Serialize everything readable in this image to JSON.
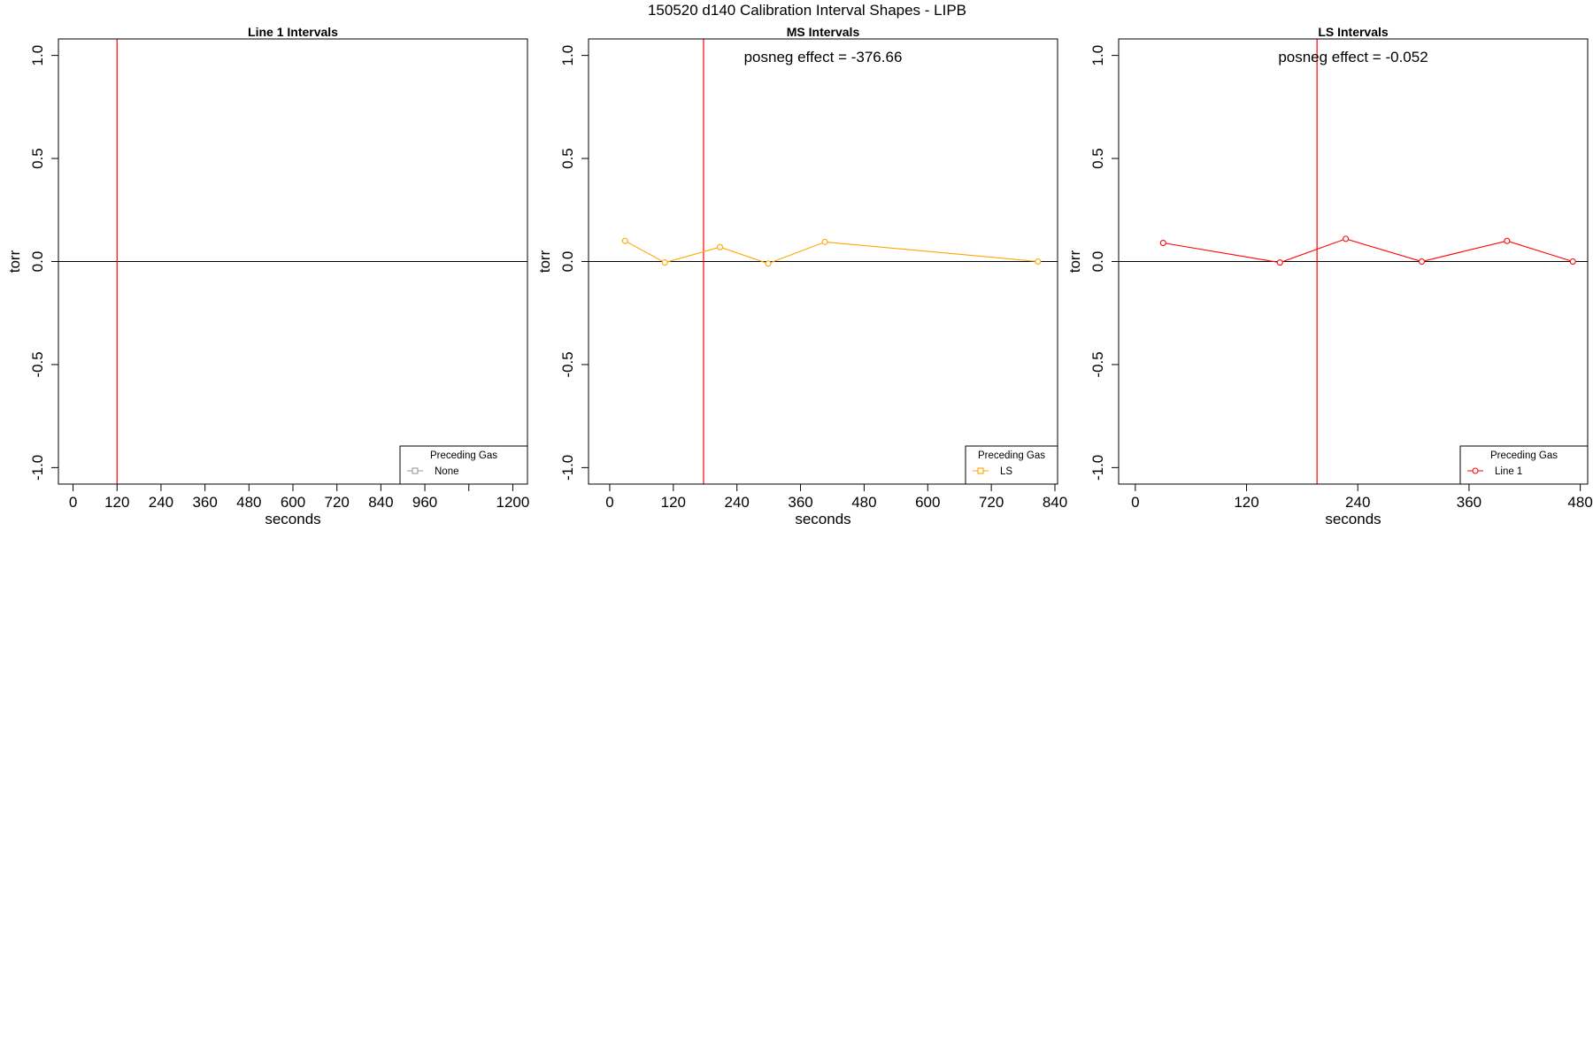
{
  "figure_title": "150520   d140   Calibration Interval Shapes - LIPB",
  "colors": {
    "red": "#ff0000",
    "orange": "#ffa500",
    "gray": "#999999",
    "axis": "#000000"
  },
  "chart_data": [
    {
      "type": "line",
      "title": "Line 1 Intervals",
      "xlabel": "seconds",
      "ylabel": "torr",
      "xlim": [
        -40,
        1240
      ],
      "ylim": [
        -1.08,
        1.08
      ],
      "xticks": [
        0,
        120,
        240,
        360,
        480,
        600,
        720,
        840,
        960,
        1080,
        1200
      ],
      "xtick_labels": [
        "0",
        "120",
        "240",
        "360",
        "480",
        "600",
        "720",
        "840",
        "960",
        "",
        "1200"
      ],
      "yticks": [
        -1.0,
        -0.5,
        0.0,
        0.5,
        1.0
      ],
      "ytick_labels": [
        "-1.0",
        "-0.5",
        "0.0",
        "0.5",
        "1.0"
      ],
      "hline": 0,
      "vline": 120,
      "annotation": "",
      "legend": {
        "title": "Preceding Gas",
        "label": "None",
        "color": "#999999",
        "position": "bottom-right",
        "marker": "square"
      },
      "series": [
        {
          "color": "#999999",
          "x": [],
          "y": []
        }
      ]
    },
    {
      "type": "line",
      "title": "MS Intervals",
      "xlabel": "seconds",
      "ylabel": "torr",
      "xlim": [
        -40,
        845
      ],
      "ylim": [
        -1.08,
        1.08
      ],
      "xticks": [
        0,
        120,
        240,
        360,
        480,
        600,
        720,
        840
      ],
      "xtick_labels": [
        "0",
        "120",
        "240",
        "360",
        "480",
        "600",
        "720",
        "840"
      ],
      "yticks": [
        -1.0,
        -0.5,
        0.0,
        0.5,
        1.0
      ],
      "ytick_labels": [
        "-1.0",
        "-0.5",
        "0.0",
        "0.5",
        "1.0"
      ],
      "hline": 0,
      "vline": 177,
      "annotation": "posneg effect = -376.66",
      "legend": {
        "title": "Preceding Gas",
        "label": "LS",
        "color": "#ffa500",
        "position": "bottom-right",
        "marker": "square"
      },
      "series": [
        {
          "color": "#ffa500",
          "x": [
            29,
            104,
            208,
            299,
            406,
            808
          ],
          "y": [
            0.1,
            -0.005,
            0.07,
            -0.01,
            0.095,
            0.0
          ]
        }
      ]
    },
    {
      "type": "line",
      "title": "LS Intervals",
      "xlabel": "seconds",
      "ylabel": "torr",
      "xlim": [
        -18,
        488
      ],
      "ylim": [
        -1.08,
        1.08
      ],
      "xticks": [
        0,
        120,
        240,
        360,
        480
      ],
      "xtick_labels": [
        "0",
        "120",
        "240",
        "360",
        "480"
      ],
      "yticks": [
        -1.0,
        -0.5,
        0.0,
        0.5,
        1.0
      ],
      "ytick_labels": [
        "-1.0",
        "-0.5",
        "0.0",
        "0.5",
        "1.0"
      ],
      "hline": 0,
      "vline": 196,
      "annotation": "posneg effect = -0.052",
      "legend": {
        "title": "Preceding Gas",
        "label": "Line 1",
        "color": "#ff0000",
        "position": "bottom-right",
        "marker": "circle"
      },
      "series": [
        {
          "color": "#ff0000",
          "x": [
            30,
            156,
            227,
            309,
            401,
            472
          ],
          "y": [
            0.09,
            -0.005,
            0.11,
            0.0,
            0.1,
            0.0
          ]
        }
      ]
    }
  ]
}
